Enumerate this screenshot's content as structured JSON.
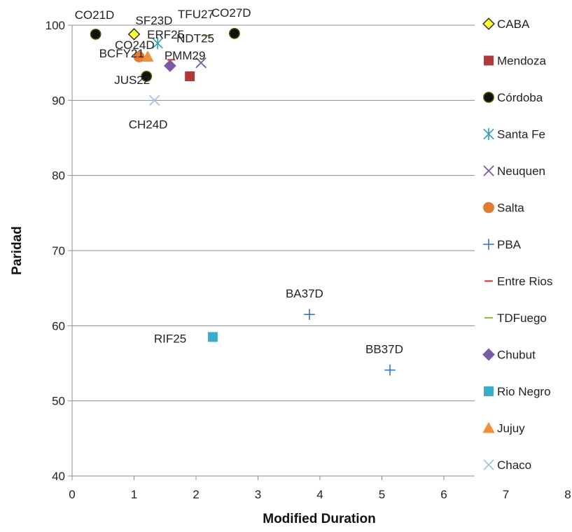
{
  "chart_data": {
    "type": "scatter",
    "title": "",
    "xlabel": "Modified Duration",
    "ylabel": "Paridad",
    "xlim": [
      0,
      8
    ],
    "ylim": [
      40,
      100
    ],
    "xticks": [
      0,
      1,
      2,
      3,
      4,
      5,
      6,
      7,
      8
    ],
    "yticks": [
      40,
      50,
      60,
      70,
      80,
      90,
      100
    ],
    "grid": "horizontal",
    "legend_position": "right",
    "series": [
      {
        "name": "CABA",
        "marker": "diamond",
        "color": "#ffff33",
        "stroke": "#333333",
        "points": [
          {
            "label": "SF23D",
            "x": 1.0,
            "y": 98.8
          }
        ]
      },
      {
        "name": "Mendoza",
        "marker": "square",
        "color": "#b03a3a",
        "stroke": "#b03a3a",
        "points": [
          {
            "label": "",
            "x": 1.9,
            "y": 93.2
          }
        ]
      },
      {
        "name": "Córdoba",
        "marker": "circle",
        "color": "#111111",
        "stroke": "#555500",
        "points": [
          {
            "label": "CO21D",
            "x": 0.38,
            "y": 98.8
          },
          {
            "label": "CO27D",
            "x": 2.62,
            "y": 98.9
          },
          {
            "label": "JUS22",
            "x": 1.2,
            "y": 93.2
          }
        ]
      },
      {
        "name": "Santa Fe",
        "marker": "asterisk",
        "color": "#2aa0b0",
        "stroke": "#2aa0b0",
        "points": [
          {
            "label": "ERF25",
            "x": 1.38,
            "y": 97.6
          }
        ]
      },
      {
        "name": "Neuquen",
        "marker": "x",
        "color": "#7b5aa6",
        "stroke": "#7b5aa6",
        "points": [
          {
            "label": "NDT25",
            "x": 2.08,
            "y": 95.0
          }
        ]
      },
      {
        "name": "Salta",
        "marker": "circle",
        "color": "#e07b30",
        "stroke": "#e07b30",
        "points": [
          {
            "label": "BCFY21",
            "x": 1.08,
            "y": 95.8
          }
        ]
      },
      {
        "name": "PBA",
        "marker": "plus",
        "color": "#3a6fc4",
        "stroke": "#3a6fc4",
        "points": [
          {
            "label": "BA37D",
            "x": 3.83,
            "y": 61.5
          },
          {
            "label": "BB37D",
            "x": 5.13,
            "y": 54.1
          }
        ]
      },
      {
        "name": "Entre Rios",
        "marker": "dash",
        "color": "#d04040",
        "stroke": "#d04040",
        "points": [
          {
            "label": "",
            "x": 1.6,
            "y": 95.4
          }
        ]
      },
      {
        "name": "TDFuego",
        "marker": "dash",
        "color": "#8dbb3a",
        "stroke": "#8dbb3a",
        "points": [
          {
            "label": "TFU27",
            "x": 2.18,
            "y": 98.6
          }
        ]
      },
      {
        "name": "Chubut",
        "marker": "diamond",
        "color": "#7b5aa6",
        "stroke": "#7b5aa6",
        "points": [
          {
            "label": "PMM29",
            "x": 1.58,
            "y": 94.6
          }
        ]
      },
      {
        "name": "Rio Negro",
        "marker": "square",
        "color": "#3aaec8",
        "stroke": "#3aaec8",
        "points": [
          {
            "label": "RIF25",
            "x": 2.27,
            "y": 58.5
          }
        ]
      },
      {
        "name": "Jujuy",
        "marker": "triangle",
        "color": "#f0903a",
        "stroke": "#f0903a",
        "points": [
          {
            "label": "CO24D",
            "x": 1.22,
            "y": 95.8
          }
        ]
      },
      {
        "name": "Chaco",
        "marker": "x",
        "color": "#a8c4e0",
        "stroke": "#a8c4e0",
        "points": [
          {
            "label": "CH24D",
            "x": 1.33,
            "y": 90.0
          }
        ]
      }
    ]
  }
}
